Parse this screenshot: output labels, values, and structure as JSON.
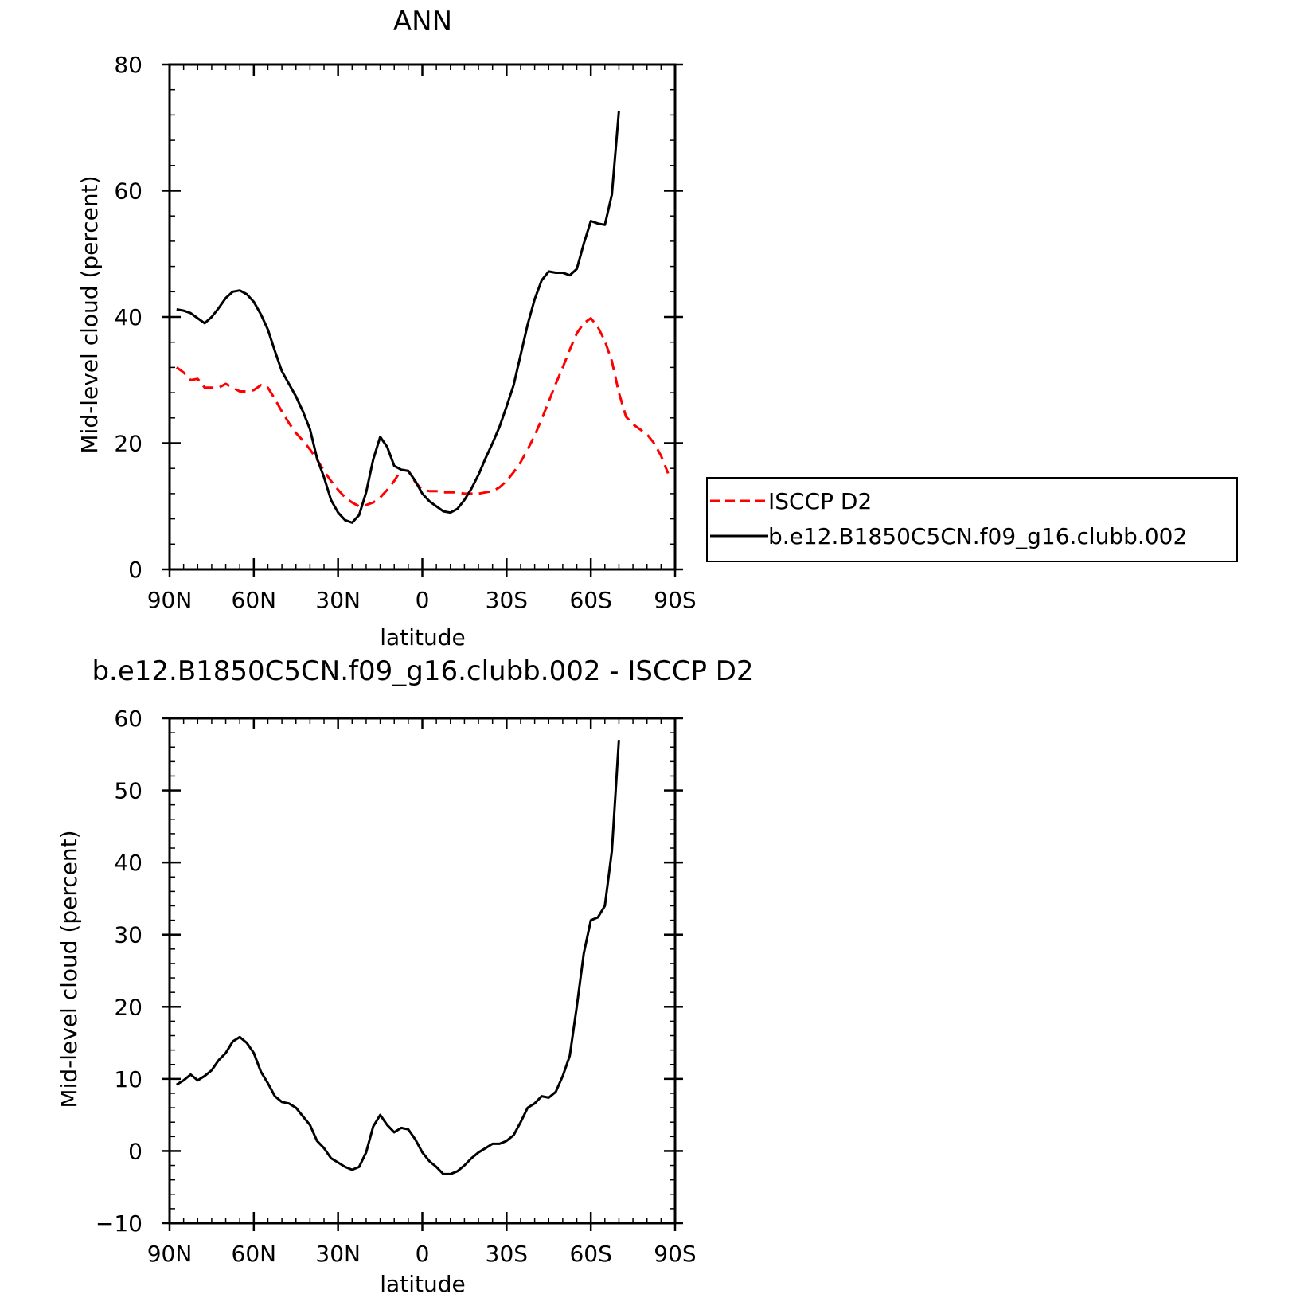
{
  "colors": {
    "obs": "#ff0000",
    "model": "#000000",
    "axis": "#000000"
  },
  "chart_data": [
    {
      "type": "line",
      "title": "ANN",
      "xlabel": "latitude",
      "ylabel": "Mid-level cloud (percent)",
      "xlim": [
        90,
        -90
      ],
      "ylim": [
        0,
        80
      ],
      "x_ticks": [
        {
          "v": 90,
          "label": "90N"
        },
        {
          "v": 60,
          "label": "60N"
        },
        {
          "v": 30,
          "label": "30N"
        },
        {
          "v": 0,
          "label": "0"
        },
        {
          "v": -30,
          "label": "30S"
        },
        {
          "v": -60,
          "label": "60S"
        },
        {
          "v": -90,
          "label": "90S"
        }
      ],
      "y_ticks": [
        {
          "v": 0,
          "label": "0"
        },
        {
          "v": 20,
          "label": "20"
        },
        {
          "v": 40,
          "label": "40"
        },
        {
          "v": 60,
          "label": "60"
        },
        {
          "v": 80,
          "label": "80"
        }
      ],
      "legend_position": "right",
      "series": [
        {
          "name": "ISCCP D2",
          "style": "dashed",
          "color": "#ff0000",
          "points": [
            [
              87.5,
              32
            ],
            [
              85,
              31.2
            ],
            [
              82.5,
              30
            ],
            [
              80,
              30.2
            ],
            [
              77.5,
              28.8
            ],
            [
              75,
              28.8
            ],
            [
              72.5,
              28.8
            ],
            [
              70,
              29.4
            ],
            [
              67.5,
              28.8
            ],
            [
              65,
              28.2
            ],
            [
              62.5,
              28.2
            ],
            [
              60,
              28.4
            ],
            [
              57.5,
              29.2
            ],
            [
              55,
              28.8
            ],
            [
              52.5,
              27
            ],
            [
              50,
              25
            ],
            [
              47.5,
              23.2
            ],
            [
              45,
              21.6
            ],
            [
              42.5,
              20.4
            ],
            [
              40,
              19
            ],
            [
              37.5,
              17.4
            ],
            [
              35,
              15.6
            ],
            [
              32.5,
              14
            ],
            [
              30,
              12.6
            ],
            [
              27.5,
              11.4
            ],
            [
              25,
              10.6
            ],
            [
              22.5,
              10
            ],
            [
              20,
              10.2
            ],
            [
              17.5,
              10.6
            ],
            [
              15,
              11.4
            ],
            [
              12.5,
              12.6
            ],
            [
              10,
              14
            ],
            [
              7.5,
              15.8
            ],
            [
              5,
              15.6
            ],
            [
              2.5,
              13.8
            ],
            [
              0,
              12.6
            ],
            [
              -2.5,
              12.4
            ],
            [
              -5,
              12.4
            ],
            [
              -7.5,
              12.2
            ],
            [
              -10,
              12.2
            ],
            [
              -12.5,
              12.2
            ],
            [
              -15,
              12
            ],
            [
              -17.5,
              12
            ],
            [
              -20,
              12
            ],
            [
              -22.5,
              12.2
            ],
            [
              -25,
              12.4
            ],
            [
              -27.5,
              13
            ],
            [
              -30,
              14
            ],
            [
              -32.5,
              15.4
            ],
            [
              -35,
              17
            ],
            [
              -37.5,
              19
            ],
            [
              -40,
              21.2
            ],
            [
              -42.5,
              23.8
            ],
            [
              -45,
              26.6
            ],
            [
              -47.5,
              29.4
            ],
            [
              -50,
              32
            ],
            [
              -52.5,
              34.8
            ],
            [
              -55,
              37.4
            ],
            [
              -57.5,
              39
            ],
            [
              -60,
              39.8
            ],
            [
              -62.5,
              38.4
            ],
            [
              -65,
              36.2
            ],
            [
              -67.5,
              33
            ],
            [
              -70,
              28
            ],
            [
              -72.5,
              24.2
            ],
            [
              -75,
              23
            ],
            [
              -77.5,
              22.2
            ],
            [
              -80,
              21.4
            ],
            [
              -82.5,
              20
            ],
            [
              -85,
              18
            ],
            [
              -87.5,
              15.2
            ]
          ]
        },
        {
          "name": "b.e12.B1850C5CN.f09_g16.clubb.002",
          "style": "solid",
          "color": "#000000",
          "points": [
            [
              87.5,
              41.2
            ],
            [
              85,
              41
            ],
            [
              82.5,
              40.6
            ],
            [
              80,
              39.8
            ],
            [
              77.5,
              39
            ],
            [
              75,
              40
            ],
            [
              72.5,
              41.4
            ],
            [
              70,
              43
            ],
            [
              67.5,
              44
            ],
            [
              65,
              44.2
            ],
            [
              62.5,
              43.6
            ],
            [
              60,
              42.4
            ],
            [
              57.5,
              40.4
            ],
            [
              55,
              38
            ],
            [
              52.5,
              34.6
            ],
            [
              50,
              31.4
            ],
            [
              47.5,
              29.4
            ],
            [
              45,
              27.4
            ],
            [
              42.5,
              25
            ],
            [
              40,
              22.2
            ],
            [
              37.5,
              17.6
            ],
            [
              35,
              14.6
            ],
            [
              32.5,
              11
            ],
            [
              30,
              9
            ],
            [
              27.5,
              7.8
            ],
            [
              25,
              7.4
            ],
            [
              22.5,
              8.6
            ],
            [
              20,
              12.2
            ],
            [
              17.5,
              17.4
            ],
            [
              15,
              21
            ],
            [
              12.5,
              19.4
            ],
            [
              10,
              16.4
            ],
            [
              7.5,
              15.8
            ],
            [
              5,
              15.6
            ],
            [
              2.5,
              14
            ],
            [
              0,
              12
            ],
            [
              -2.5,
              10.8
            ],
            [
              -5,
              10
            ],
            [
              -7.5,
              9.2
            ],
            [
              -10,
              9
            ],
            [
              -12.5,
              9.6
            ],
            [
              -15,
              11
            ],
            [
              -17.5,
              12.8
            ],
            [
              -20,
              15
            ],
            [
              -22.5,
              17.6
            ],
            [
              -25,
              20
            ],
            [
              -27.5,
              22.6
            ],
            [
              -30,
              25.8
            ],
            [
              -32.5,
              29.2
            ],
            [
              -35,
              34
            ],
            [
              -37.5,
              38.8
            ],
            [
              -40,
              42.8
            ],
            [
              -42.5,
              45.8
            ],
            [
              -45,
              47.2
            ],
            [
              -47.5,
              47
            ],
            [
              -50,
              47
            ],
            [
              -52.5,
              46.6
            ],
            [
              -55,
              47.6
            ],
            [
              -57.5,
              51.6
            ],
            [
              -60,
              55.2
            ],
            [
              -62.5,
              54.8
            ],
            [
              -65,
              54.6
            ],
            [
              -67.5,
              59.4
            ],
            [
              -70,
              72.6
            ]
          ]
        }
      ]
    },
    {
      "type": "line",
      "title": "b.e12.B1850C5CN.f09_g16.clubb.002 - ISCCP D2",
      "xlabel": "latitude",
      "ylabel": "Mid-level cloud (percent)",
      "xlim": [
        90,
        -90
      ],
      "ylim": [
        -10,
        60
      ],
      "x_ticks": [
        {
          "v": 90,
          "label": "90N"
        },
        {
          "v": 60,
          "label": "60N"
        },
        {
          "v": 30,
          "label": "30N"
        },
        {
          "v": 0,
          "label": "0"
        },
        {
          "v": -30,
          "label": "30S"
        },
        {
          "v": -60,
          "label": "60S"
        },
        {
          "v": -90,
          "label": "90S"
        }
      ],
      "y_ticks": [
        {
          "v": -10,
          "label": "−10"
        },
        {
          "v": 0,
          "label": "0"
        },
        {
          "v": 10,
          "label": "10"
        },
        {
          "v": 20,
          "label": "20"
        },
        {
          "v": 30,
          "label": "30"
        },
        {
          "v": 40,
          "label": "40"
        },
        {
          "v": 50,
          "label": "50"
        },
        {
          "v": 60,
          "label": "60"
        }
      ],
      "series": [
        {
          "style": "solid",
          "color": "#000000",
          "points": [
            [
              87.5,
              9.2
            ],
            [
              85,
              9.8
            ],
            [
              82.5,
              10.6
            ],
            [
              80,
              9.8
            ],
            [
              77.5,
              10.4
            ],
            [
              75,
              11.2
            ],
            [
              72.5,
              12.6
            ],
            [
              70,
              13.6
            ],
            [
              67.5,
              15.2
            ],
            [
              65,
              15.8
            ],
            [
              62.5,
              15
            ],
            [
              60,
              13.6
            ],
            [
              57.5,
              11
            ],
            [
              55,
              9.4
            ],
            [
              52.5,
              7.6
            ],
            [
              50,
              6.8
            ],
            [
              47.5,
              6.6
            ],
            [
              45,
              6
            ],
            [
              42.5,
              4.8
            ],
            [
              40,
              3.6
            ],
            [
              37.5,
              1.4
            ],
            [
              35,
              0.4
            ],
            [
              32.5,
              -1
            ],
            [
              30,
              -1.6
            ],
            [
              27.5,
              -2.2
            ],
            [
              25,
              -2.6
            ],
            [
              22.5,
              -2.2
            ],
            [
              20,
              -0.2
            ],
            [
              17.5,
              3.4
            ],
            [
              15,
              5
            ],
            [
              12.5,
              3.6
            ],
            [
              10,
              2.6
            ],
            [
              7.5,
              3.2
            ],
            [
              5,
              3
            ],
            [
              2.5,
              1.6
            ],
            [
              0,
              -0.2
            ],
            [
              -2.5,
              -1.4
            ],
            [
              -5,
              -2.2
            ],
            [
              -7.5,
              -3.2
            ],
            [
              -10,
              -3.2
            ],
            [
              -12.5,
              -2.8
            ],
            [
              -15,
              -2
            ],
            [
              -17.5,
              -1
            ],
            [
              -20,
              -0.2
            ],
            [
              -22.5,
              0.4
            ],
            [
              -25,
              1
            ],
            [
              -27.5,
              1
            ],
            [
              -30,
              1.4
            ],
            [
              -32.5,
              2.2
            ],
            [
              -35,
              4
            ],
            [
              -37.5,
              6
            ],
            [
              -40,
              6.6
            ],
            [
              -42.5,
              7.6
            ],
            [
              -45,
              7.4
            ],
            [
              -47.5,
              8.2
            ],
            [
              -50,
              10.4
            ],
            [
              -52.5,
              13.2
            ],
            [
              -55,
              20
            ],
            [
              -57.5,
              27.4
            ],
            [
              -60,
              32
            ],
            [
              -62.5,
              32.4
            ],
            [
              -65,
              34
            ],
            [
              -67.5,
              41.6
            ],
            [
              -70,
              57
            ]
          ]
        }
      ]
    }
  ]
}
